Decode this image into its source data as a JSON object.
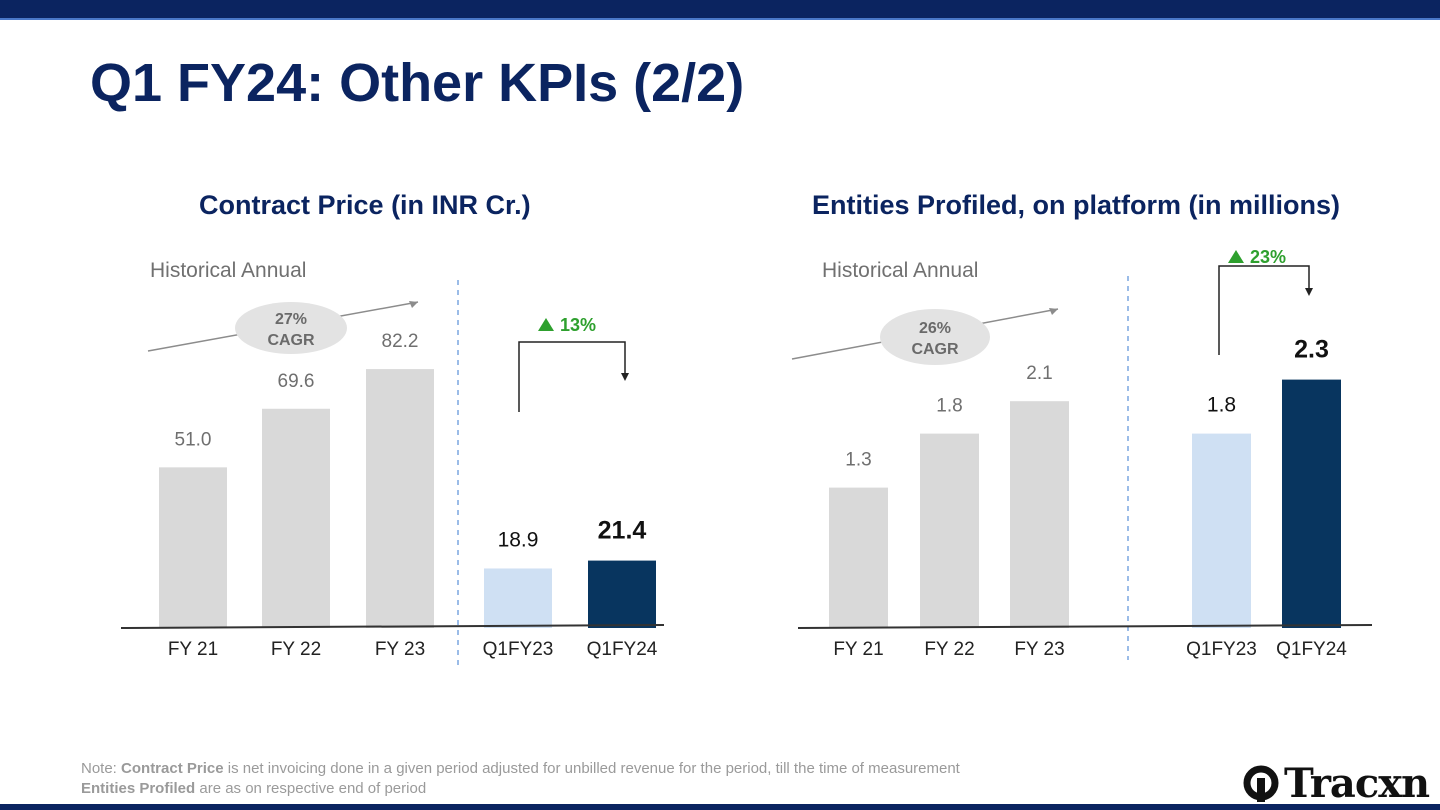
{
  "slide": {
    "title": "Q1 FY24: Other KPIs (2/2)",
    "note_prefix": "Note: ",
    "note_line1_bold": "Contract Price",
    "note_line1_rest": " is net invoicing done in a given period adjusted for unbilled revenue for the period, till the time of measurement",
    "note_line2_bold": "Entities Profiled",
    "note_line2_rest": " are as on respective end of period",
    "logo_text": "Tracxn",
    "logo_icon": "tracxn-logo-icon"
  },
  "colors": {
    "navy": "#0b2460",
    "bar_historical": "#d9d9d9",
    "bar_prev_quarter": "#cfe0f3",
    "bar_current_quarter": "#08355f",
    "growth_green": "#2ea02e"
  },
  "chart_data": [
    {
      "type": "bar",
      "title_bold": "Contract Price",
      "title_rest": " (in INR Cr.)",
      "section_label": "Historical Annual",
      "categories": [
        "FY 21",
        "FY 22",
        "FY 23",
        "Q1FY23",
        "Q1FY24"
      ],
      "values": [
        51.0,
        69.6,
        82.2,
        18.9,
        21.4
      ],
      "value_labels": [
        "51.0",
        "69.6",
        "82.2",
        "18.9",
        "21.4"
      ],
      "cagr_pct": "27%",
      "cagr_label": "CAGR",
      "growth_label": "13%",
      "xlabel": "",
      "ylabel": ""
    },
    {
      "type": "bar",
      "title_bold": "Entities Profiled",
      "title_rest": ", on platform (in millions)",
      "section_label": "Historical Annual",
      "categories": [
        "FY 21",
        "FY 22",
        "FY 23",
        "Q1FY23",
        "Q1FY24"
      ],
      "values": [
        1.3,
        1.8,
        2.1,
        1.8,
        2.3
      ],
      "value_labels": [
        "1.3",
        "1.8",
        "2.1",
        "1.8",
        "2.3"
      ],
      "cagr_pct": "26%",
      "cagr_label": "CAGR",
      "growth_label": "23%",
      "xlabel": "",
      "ylabel": ""
    }
  ]
}
